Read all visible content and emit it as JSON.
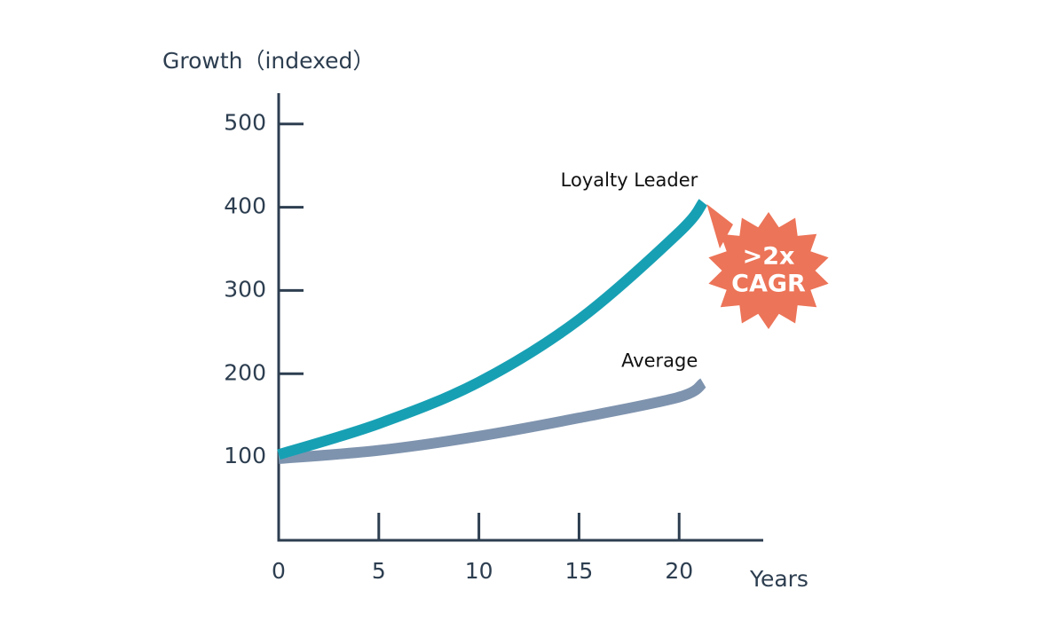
{
  "chart_data": {
    "type": "line",
    "y_label": "Growth（indexed）",
    "x_label": "Years",
    "x": [
      0,
      5,
      10,
      15,
      20,
      21.2
    ],
    "series": [
      {
        "name": "Loyalty Leader",
        "color": "#17a0b4",
        "values": [
          103,
          140,
          190,
          265,
          370,
          406
        ]
      },
      {
        "name": "Average",
        "color": "#7e93ae",
        "values": [
          98,
          108,
          125,
          147,
          172,
          189
        ]
      }
    ],
    "annotation": {
      "lines": [
        ">2x",
        "CAGR"
      ],
      "color": "#ec7458"
    },
    "xlim": [
      0,
      24.2
    ],
    "xticks": [
      0,
      5,
      10,
      15,
      20
    ],
    "ylim": [
      0,
      537
    ],
    "yticks": [
      100,
      200,
      300,
      400,
      500
    ],
    "axis_color": "#2d3e50"
  }
}
